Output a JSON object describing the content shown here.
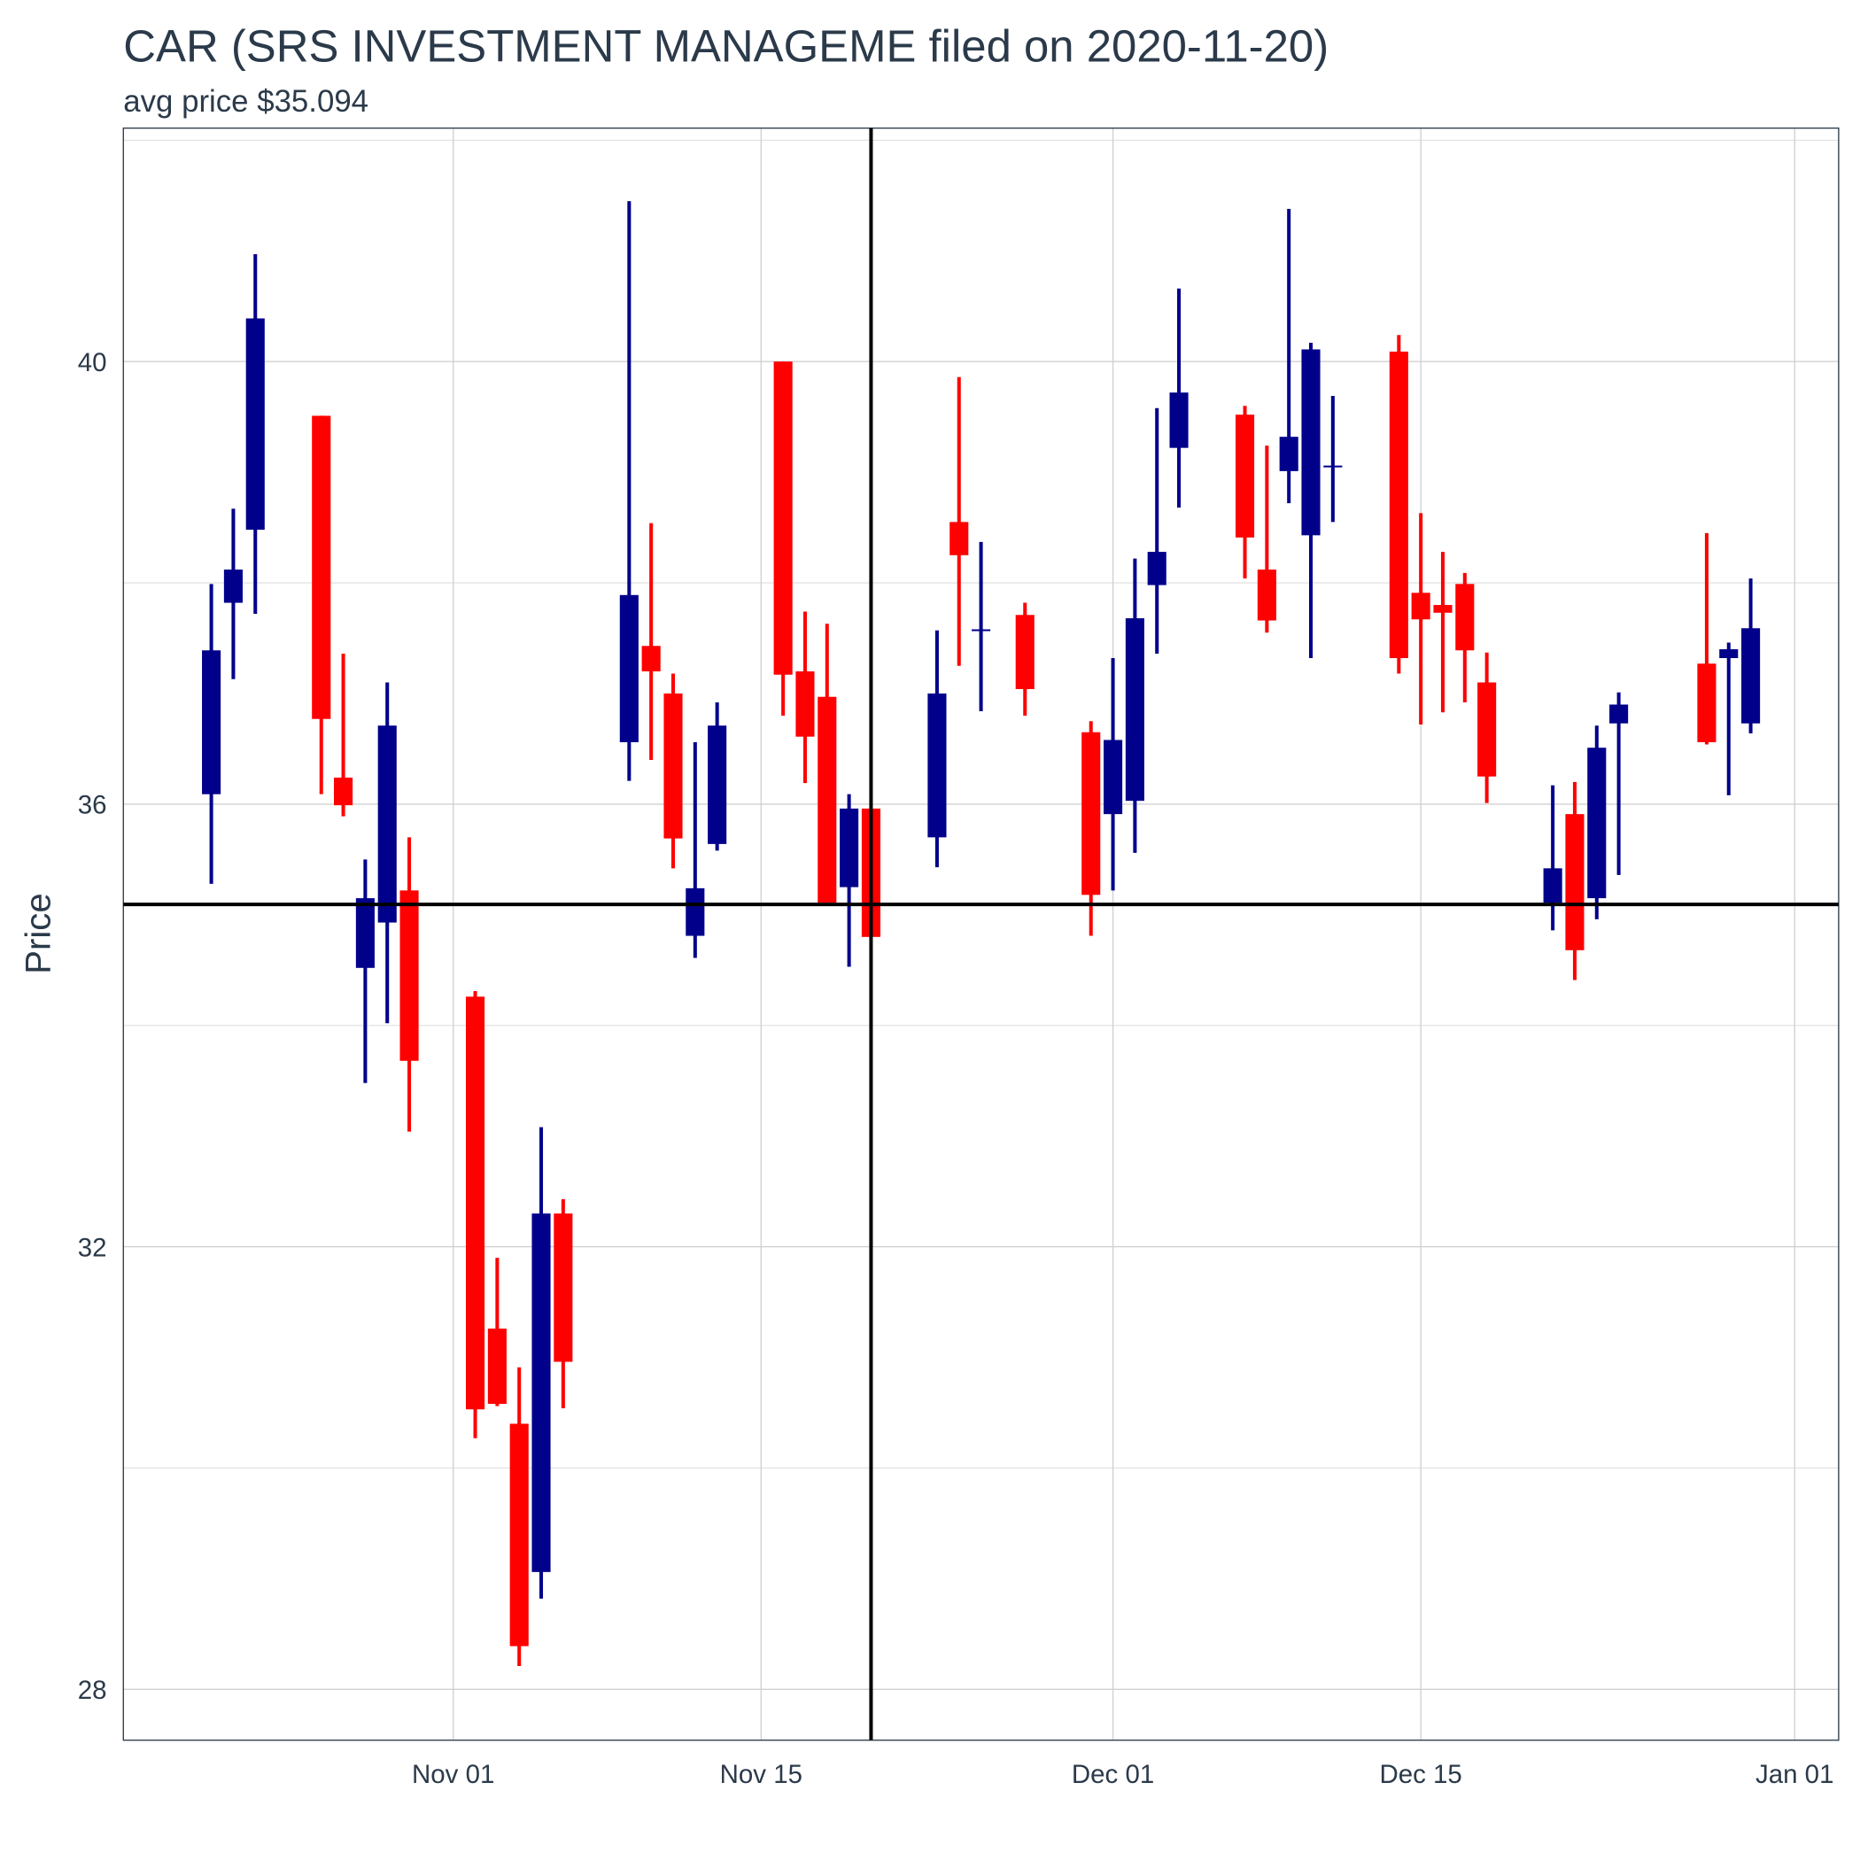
{
  "chart_data": {
    "type": "candlestick",
    "title": "CAR (SRS INVESTMENT MANAGEME filed on 2020-11-20)",
    "subtitle": "avg price $35.094",
    "y_label": "Price",
    "x": [
      "Oct 21",
      "Oct 22",
      "Oct 23",
      "Oct 26",
      "Oct 27",
      "Oct 28",
      "Oct 29",
      "Oct 30",
      "Nov 02",
      "Nov 03",
      "Nov 04",
      "Nov 05",
      "Nov 06",
      "Nov 09",
      "Nov 10",
      "Nov 11",
      "Nov 12",
      "Nov 13",
      "Nov 16",
      "Nov 17",
      "Nov 18",
      "Nov 19",
      "Nov 20",
      "Nov 23",
      "Nov 24",
      "Nov 25",
      "Nov 27",
      "Nov 30",
      "Dec 01",
      "Dec 02",
      "Dec 03",
      "Dec 04",
      "Dec 07",
      "Dec 08",
      "Dec 09",
      "Dec 10",
      "Dec 11",
      "Dec 14",
      "Dec 15",
      "Dec 16",
      "Dec 17",
      "Dec 18",
      "Dec 21",
      "Dec 22",
      "Dec 23",
      "Dec 24",
      "Dec 28",
      "Dec 29",
      "Dec 30"
    ],
    "open": [
      36.09,
      37.82,
      38.48,
      39.51,
      36.24,
      34.52,
      34.93,
      35.22,
      34.26,
      31.26,
      30.4,
      29.06,
      32.3,
      36.56,
      37.43,
      37.0,
      34.81,
      35.64,
      40.0,
      37.2,
      36.97,
      35.25,
      35.96,
      35.7,
      38.55,
      37.57,
      37.71,
      36.65,
      35.91,
      36.03,
      37.98,
      39.22,
      39.52,
      38.12,
      39.01,
      38.43,
      39.05,
      40.09,
      37.91,
      37.8,
      37.99,
      37.1,
      35.11,
      35.91,
      35.15,
      36.73,
      37.27,
      37.32,
      36.73
    ],
    "high": [
      37.99,
      38.67,
      40.97,
      39.51,
      37.36,
      35.5,
      37.1,
      35.7,
      34.31,
      31.9,
      30.91,
      33.08,
      32.43,
      41.45,
      38.54,
      37.18,
      36.56,
      36.92,
      40.0,
      37.74,
      37.63,
      36.09,
      35.96,
      37.57,
      39.86,
      38.37,
      37.82,
      36.75,
      37.32,
      38.22,
      39.58,
      40.66,
      39.6,
      39.24,
      41.38,
      40.17,
      39.69,
      40.24,
      38.63,
      38.28,
      38.09,
      37.37,
      36.17,
      36.2,
      36.71,
      37.01,
      38.45,
      37.46,
      38.04
    ],
    "low": [
      35.28,
      37.13,
      37.72,
      36.09,
      35.89,
      33.48,
      34.02,
      33.04,
      30.27,
      30.56,
      28.21,
      28.82,
      30.54,
      36.21,
      36.4,
      35.42,
      34.61,
      35.58,
      36.8,
      36.19,
      35.11,
      34.53,
      34.8,
      35.43,
      37.25,
      36.84,
      36.8,
      34.81,
      35.22,
      35.56,
      37.36,
      38.68,
      38.04,
      37.55,
      38.72,
      37.32,
      38.55,
      37.18,
      36.72,
      36.83,
      36.92,
      36.01,
      34.86,
      34.41,
      34.96,
      35.36,
      36.54,
      36.08,
      36.64
    ],
    "close": [
      37.39,
      38.12,
      40.39,
      36.77,
      35.99,
      35.15,
      36.71,
      33.68,
      30.53,
      30.58,
      28.39,
      32.3,
      30.96,
      37.89,
      37.2,
      35.69,
      35.24,
      36.71,
      37.17,
      36.61,
      35.11,
      35.96,
      34.8,
      37.0,
      38.25,
      37.58,
      37.04,
      35.18,
      36.58,
      37.68,
      38.28,
      39.72,
      38.41,
      37.66,
      39.32,
      40.11,
      39.06,
      37.32,
      37.67,
      37.73,
      37.39,
      36.25,
      35.42,
      34.68,
      36.51,
      36.9,
      36.56,
      37.4,
      37.59
    ],
    "up_color": "#00008b",
    "down_color": "#ff0000",
    "xlim": [
      "Oct 17",
      "Jan 03"
    ],
    "xticks": [
      "Nov 01",
      "Nov 15",
      "Dec 01",
      "Dec 15",
      "Jan 01"
    ],
    "ylim": [
      27.54,
      42.11
    ],
    "yticks": [
      28,
      32,
      36,
      40
    ],
    "minor_yticks": [
      30,
      34,
      38,
      42
    ],
    "grid": true,
    "hline": 35.094,
    "vline": "Nov 20"
  }
}
